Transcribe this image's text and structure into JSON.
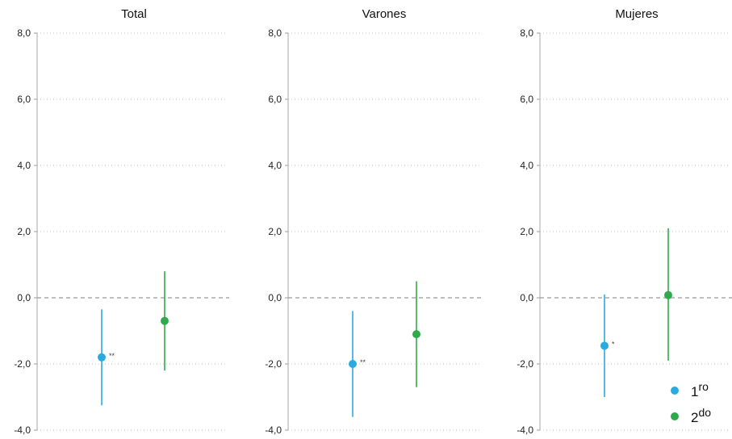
{
  "chart_data": {
    "type": "scatter",
    "yticks": [
      "8,0",
      "6,0",
      "4,0",
      "2,0",
      "0,0",
      "-2,0",
      "-4,0"
    ],
    "ylim": [
      -4.0,
      8.0
    ],
    "reference_line": 0.0,
    "grid": "horizontal dotted",
    "legend_position": "bottom-right",
    "series_styles": [
      {
        "key": "1ro",
        "label_main": "1",
        "label_sup": "ro",
        "color": "#29abe2"
      },
      {
        "key": "2do",
        "label_main": "2",
        "label_sup": "do",
        "color": "#2eaa4a"
      }
    ],
    "panels": [
      {
        "title": "Total",
        "points": [
          {
            "series": "1ro",
            "value": -1.8,
            "low": -3.25,
            "high": -0.35,
            "sig": "**"
          },
          {
            "series": "2do",
            "value": -0.7,
            "low": -2.2,
            "high": 0.8,
            "sig": ""
          }
        ]
      },
      {
        "title": "Varones",
        "points": [
          {
            "series": "1ro",
            "value": -2.0,
            "low": -3.6,
            "high": -0.4,
            "sig": "**"
          },
          {
            "series": "2do",
            "value": -1.1,
            "low": -2.7,
            "high": 0.5,
            "sig": ""
          }
        ]
      },
      {
        "title": "Mujeres",
        "points": [
          {
            "series": "1ro",
            "value": -1.45,
            "low": -3.0,
            "high": 0.1,
            "sig": "*"
          },
          {
            "series": "2do",
            "value": 0.08,
            "low": -1.9,
            "high": 2.1,
            "sig": ""
          }
        ]
      }
    ]
  }
}
